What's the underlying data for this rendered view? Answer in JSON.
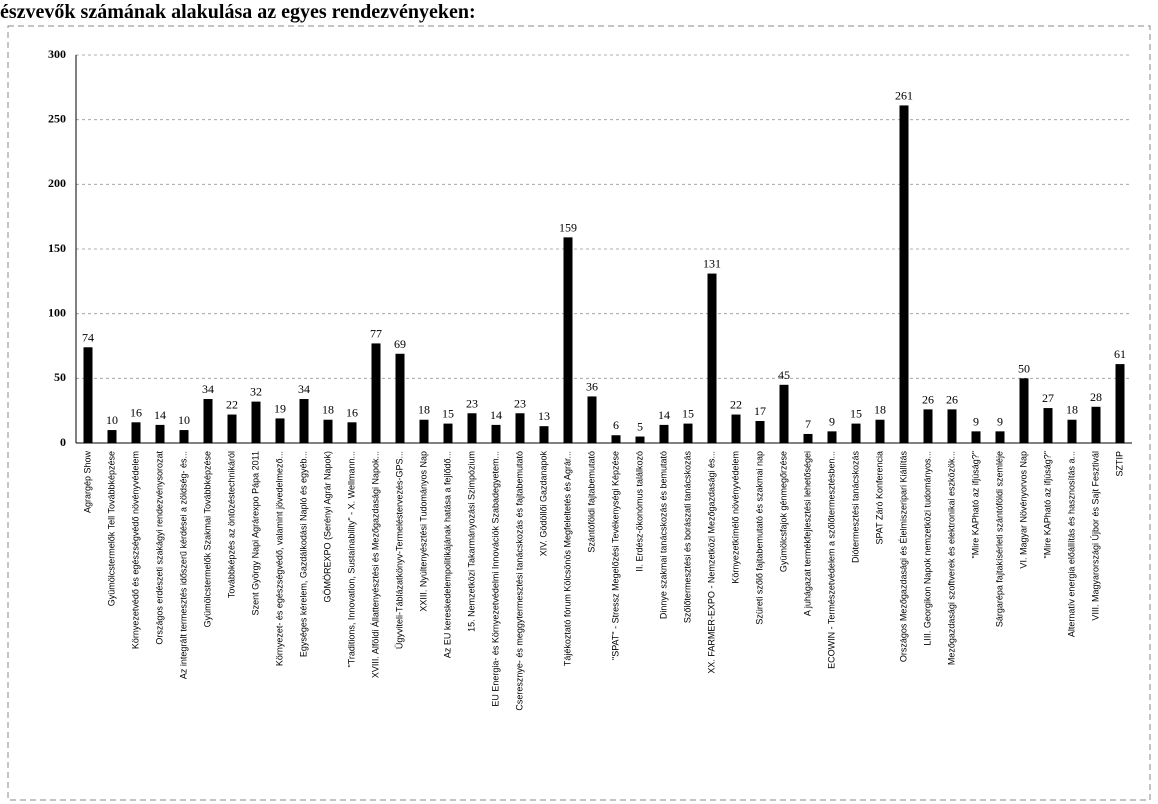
{
  "chart_data": {
    "type": "bar",
    "title": "észvevők számának alakulása az egyes rendezvényeken:",
    "categories": [
      "Agrargép Show",
      "Gyümölcstermelők Tell Továbbképzése",
      "Környezetvédő és egészségvédő növényvédelem",
      "Országos erdészeti szakágyi rendezvénysorozat",
      "Az integrált termesztés időszerű kérdései a zöldség- és...",
      "Gyümölcstermelők Szakmai Továbbképzése",
      "Továbbképzés az öntözéstechnikáról",
      "Szent György Napi Agrárexpo Pápa 2011",
      "Környezet- és egészségvédő, valamint jövedelmező...",
      "Egységes kérelem, Gazdálkodási Napló és egyéb...",
      "GÖMÖREXPO (Serényi Agrár Napok)",
      "\"Traditions, Innovation, Sustainability\" - X. Wellmann...",
      "XVIII. Alföldi Állattenyésztési és Mezőgazdasági Napok...",
      "Ügyviteli-Táblázatkönyv-Termeléstervezés-GPS...",
      "XXIII. Nyúltenyésztési Tudományos Nap",
      "Az EU kereskedelempolitikájának hatása a fejlődő...",
      "15. Nemzetközi Takarmányozási Szimpózium",
      "EU Energia- és Környezetvédelmi Innovációk Szabadegyetem...",
      "Cseresznye- és meggytermesztési tanácskozás és fajtabemutató",
      "XIV. Gödöllői Gazdanapok",
      "Tájékoztató fórum Kölcsönös Megfeleltetés és Agrár...",
      "Szántóföldi fajtabemutató",
      "\"SPAT\" - Stressz Megelőzési Tevékenységi Képzése",
      "II. Erdész-ökonómus találkozó",
      "Dinnye szakmai tanácskozás és bemutató",
      "Szőlőtermesztési és borászati tanácskozás",
      "XX. FARMER-EXPO - Nemzetközi Mezőgazdasági és...",
      "Környezetkímélő növényvédelem",
      "Szüreti szőlő fajtabemutató és szakmai nap",
      "Gyümölcsfajok génmegőrzése",
      "A juhágazat termékfejlesztési lehetőségei",
      "ECOWIN - Természetvédelem a szőlőtermesztésben...",
      "Diótermesztési tanácskozás",
      "SPAT Záró Konferencia",
      "Országos Mezőgazdasági és Élelmiszeripari Kiállítás",
      "LIII. Georgikon Napok nemzetközi tudományos...",
      "Mezőgazdasági szoftverek és elektronikai eszközök...",
      "\"Mire KAPható az ifjúság?\"",
      "Sárgarépa fajtakísérleti szántóföldi szemléje",
      "VI. Magyar Növényorvos Nap",
      "\"Mire KAPható az ifjúság?\"",
      "Alternatív energia előállítás és hasznosítás a...",
      "VIII. Magyarországi Újbor és Sajt Fesztivál",
      "SZTIP"
    ],
    "values": [
      74,
      10,
      16,
      14,
      10,
      34,
      22,
      32,
      19,
      34,
      18,
      16,
      77,
      69,
      18,
      15,
      23,
      14,
      23,
      13,
      159,
      36,
      6,
      5,
      14,
      15,
      131,
      22,
      17,
      45,
      7,
      9,
      15,
      18,
      261,
      26,
      26,
      9,
      9,
      50,
      27,
      18,
      28,
      61
    ],
    "color": "#000000",
    "ylim": [
      0,
      300
    ],
    "yticks": [
      0,
      50,
      100,
      150,
      200,
      250,
      300
    ],
    "grid": true
  }
}
